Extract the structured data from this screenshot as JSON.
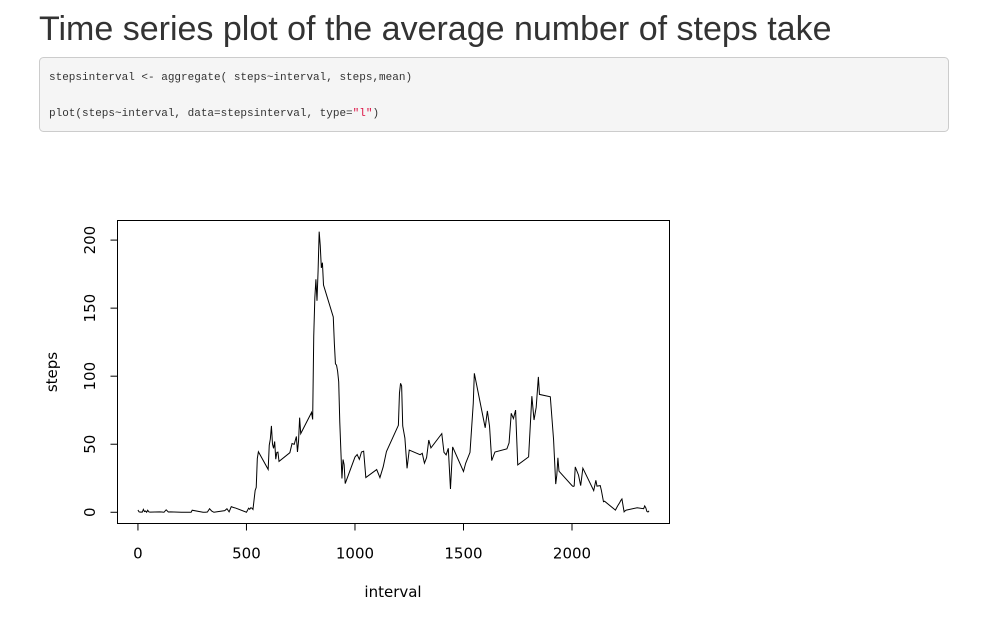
{
  "header": {
    "title": "Time series plot of the average number of steps take"
  },
  "code": {
    "lines": [
      [
        "stepsinterval <- aggregate( steps~interval, steps,mean)"
      ],
      [
        "plot(steps~interval, data=stepsinterval, type=",
        "\"l\"",
        ")"
      ]
    ]
  },
  "chart_data": {
    "type": "line",
    "x_label": "interval",
    "y_label": "steps",
    "color": "#000000",
    "xlim": [
      -94.2,
      2449.2
    ],
    "ylim": [
      -8.25,
      214.4
    ],
    "xticks": [
      0,
      500,
      1000,
      1500,
      2000
    ],
    "yticks": [
      0,
      50,
      100,
      150,
      200
    ],
    "x": [
      0,
      5,
      10,
      15,
      20,
      25,
      30,
      35,
      40,
      45,
      50,
      55,
      100,
      110,
      120,
      130,
      140,
      150,
      200,
      220,
      230,
      245,
      250,
      300,
      310,
      320,
      330,
      340,
      350,
      400,
      410,
      420,
      430,
      440,
      450,
      500,
      510,
      515,
      520,
      525,
      530,
      540,
      545,
      550,
      555,
      600,
      605,
      610,
      615,
      620,
      625,
      630,
      635,
      640,
      645,
      650,
      700,
      710,
      720,
      730,
      735,
      740,
      745,
      750,
      800,
      805,
      810,
      815,
      820,
      825,
      830,
      835,
      840,
      845,
      850,
      855,
      900,
      905,
      910,
      915,
      920,
      925,
      930,
      935,
      940,
      945,
      950,
      955,
      1000,
      1010,
      1020,
      1030,
      1040,
      1050,
      1100,
      1115,
      1130,
      1145,
      1200,
      1205,
      1210,
      1215,
      1220,
      1230,
      1240,
      1250,
      1300,
      1310,
      1320,
      1330,
      1340,
      1350,
      1400,
      1410,
      1420,
      1430,
      1440,
      1450,
      1500,
      1510,
      1530,
      1545,
      1550,
      1600,
      1610,
      1620,
      1630,
      1645,
      1700,
      1710,
      1720,
      1730,
      1740,
      1750,
      1800,
      1815,
      1825,
      1835,
      1845,
      1850,
      1900,
      1915,
      1925,
      1930,
      1935,
      1940,
      2000,
      2005,
      2010,
      2015,
      2030,
      2040,
      2050,
      2100,
      2110,
      2115,
      2130,
      2135,
      2145,
      2150,
      2200,
      2210,
      2220,
      2225,
      2230,
      2240,
      2245,
      2250,
      2300,
      2330,
      2335,
      2340,
      2345,
      2350,
      2355
    ],
    "values": [
      1.7,
      0.3,
      0.1,
      0.2,
      0.1,
      2.1,
      0.5,
      0.9,
      0,
      1.5,
      0.3,
      0.1,
      0.3,
      0.2,
      0,
      1.8,
      0.2,
      0.3,
      0,
      0,
      0,
      0,
      1.5,
      0,
      0,
      0.2,
      2.6,
      0.9,
      0,
      1.2,
      2.6,
      0.3,
      4.1,
      3.5,
      3.1,
      0,
      3.0,
      2.2,
      3.3,
      3.0,
      2.1,
      16,
      18.3,
      39.5,
      44.5,
      31.5,
      49.3,
      53.8,
      63.5,
      50,
      47,
      52,
      39,
      44,
      44.2,
      37.4,
      43.8,
      50.5,
      49.9,
      55.7,
      44.3,
      52.3,
      69.5,
      57.8,
      73.4,
      68.2,
      129.4,
      157.5,
      171.2,
      155.4,
      177.3,
      206.2,
      195.9,
      179.6,
      183.4,
      167.0,
      143.5,
      124.0,
      109.1,
      108.1,
      103.7,
      95.9,
      66.2,
      45.2,
      24.8,
      38.8,
      34.98,
      21.1,
      40.6,
      42.4,
      38.9,
      44.3,
      44.9,
      25.5,
      31.4,
      25.5,
      33.4,
      44.6,
      63.9,
      87.6,
      94.8,
      92.8,
      63.4,
      54.5,
      32.3,
      45.7,
      42.3,
      43.3,
      36.1,
      40.2,
      53.1,
      47.3,
      57.8,
      44.1,
      42.2,
      47.0,
      17.1,
      48.0,
      30.0,
      36.0,
      44.0,
      80,
      102.1,
      62.1,
      74.5,
      63.2,
      38.0,
      44.3,
      46.6,
      51.0,
      72.7,
      68.9,
      75.1,
      34.8,
      40.7,
      85.3,
      67.8,
      77.2,
      99.5,
      86.6,
      84.9,
      53.5,
      20.7,
      27.4,
      40.0,
      30.2,
      19.6,
      19.0,
      19.3,
      33.3,
      27.3,
      19.6,
      32.4,
      15.9,
      23.5,
      19.2,
      19.6,
      16.3,
      7.8,
      8.1,
      1.6,
      4.6,
      7.2,
      8.7,
      9.8,
      0.3,
      1.1,
      1.6,
      3.3,
      2.6,
      4.7,
      3.3,
      0.6,
      0.2,
      1.1
    ]
  }
}
